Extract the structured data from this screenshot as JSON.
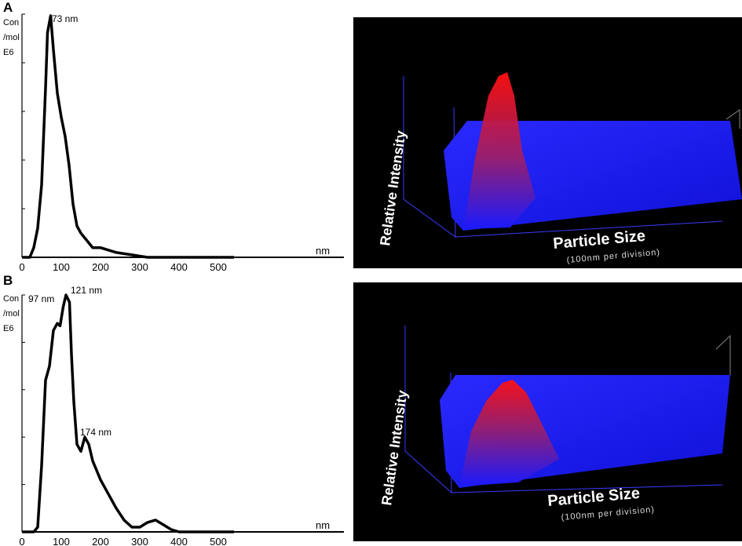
{
  "panels": [
    {
      "letter": "A",
      "ylabel": [
        "Con",
        "/mol",
        "E6"
      ],
      "xunit": "nm",
      "xticks": [
        "0",
        "100",
        "200",
        "300",
        "400",
        "500"
      ],
      "peaks": [
        "73 nm"
      ]
    },
    {
      "letter": "B",
      "ylabel": [
        "Con",
        "/mol",
        "E6"
      ],
      "xunit": "nm",
      "xticks": [
        "0",
        "100",
        "200",
        "300",
        "400",
        "500"
      ],
      "peaks": [
        "97 nm",
        "121 nm",
        "174 nm"
      ]
    }
  ],
  "surface_plots": [
    {
      "zlabel": "Relative Intensity",
      "xlabel": "Particle Size",
      "xsublabel": "(100nm per division)"
    },
    {
      "zlabel": "Relative Intensity",
      "xlabel": "Particle Size",
      "xsublabel": "(100nm per division)"
    }
  ],
  "chart_data": [
    {
      "type": "line",
      "xlabel": "nm",
      "ylabel": "Con /mol E6",
      "xlim": [
        0,
        540
      ],
      "x": [
        0,
        20,
        30,
        40,
        50,
        60,
        65,
        73,
        80,
        90,
        100,
        110,
        120,
        130,
        140,
        150,
        160,
        170,
        180,
        200,
        220,
        240,
        260,
        280,
        300,
        320,
        360,
        400,
        540
      ],
      "y": [
        0,
        0,
        0.04,
        0.12,
        0.3,
        0.7,
        0.93,
        1.0,
        0.86,
        0.68,
        0.58,
        0.5,
        0.38,
        0.22,
        0.13,
        0.1,
        0.08,
        0.06,
        0.04,
        0.04,
        0.03,
        0.02,
        0.015,
        0.01,
        0.005,
        0,
        0,
        0,
        0
      ],
      "annotations": [
        {
          "x": 73,
          "text": "73 nm"
        }
      ]
    },
    {
      "type": "line",
      "xlabel": "nm",
      "ylabel": "Con /mol E6",
      "xlim": [
        0,
        540
      ],
      "x": [
        0,
        30,
        40,
        50,
        60,
        70,
        80,
        90,
        97,
        105,
        112,
        121,
        126,
        132,
        140,
        150,
        160,
        170,
        180,
        190,
        200,
        220,
        240,
        260,
        280,
        300,
        320,
        340,
        360,
        380,
        400,
        540
      ],
      "y": [
        0,
        0,
        0.02,
        0.28,
        0.64,
        0.7,
        0.85,
        0.88,
        0.87,
        0.95,
        1.0,
        0.97,
        0.75,
        0.55,
        0.37,
        0.34,
        0.4,
        0.37,
        0.3,
        0.26,
        0.22,
        0.16,
        0.1,
        0.05,
        0.02,
        0.02,
        0.04,
        0.05,
        0.03,
        0.01,
        0,
        0
      ],
      "annotations": [
        {
          "x": 97,
          "text": "97 nm"
        },
        {
          "x": 121,
          "text": "121 nm"
        },
        {
          "x": 174,
          "text": "174 nm"
        }
      ]
    }
  ]
}
